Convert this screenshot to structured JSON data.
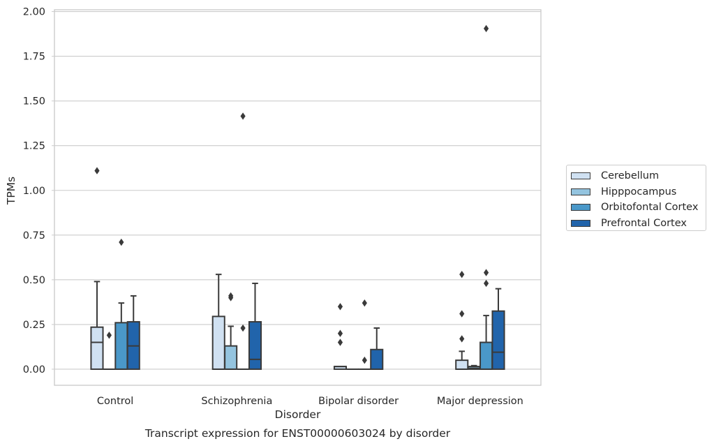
{
  "chart_data": {
    "type": "box",
    "caption": "Transcript expression for ENST00000603024 by disorder",
    "xlabel": "Disorder",
    "ylabel": "TPMs",
    "ylim": [
      -0.09,
      2.01
    ],
    "yticks": [
      0.0,
      0.25,
      0.5,
      0.75,
      1.0,
      1.25,
      1.5,
      1.75,
      2.0
    ],
    "ytick_labels": [
      "0.00",
      "0.25",
      "0.50",
      "0.75",
      "1.00",
      "1.25",
      "1.50",
      "1.75",
      "2.00"
    ],
    "grid": true,
    "legend_position": "right, outside",
    "categories": [
      "Control",
      "Schizophrenia",
      "Bipolar disorder",
      "Major depression"
    ],
    "series": [
      {
        "name": "Cerebellum",
        "color": "#d0e1f2",
        "boxes": [
          {
            "q1": 0.0,
            "median": 0.15,
            "q3": 0.235,
            "whisker_low": 0.0,
            "whisker_high": 0.49,
            "outliers": [
              1.11
            ]
          },
          {
            "q1": 0.0,
            "median": 0.0,
            "q3": 0.295,
            "whisker_low": 0.0,
            "whisker_high": 0.53,
            "outliers": []
          },
          {
            "q1": 0.0,
            "median": 0.015,
            "q3": 0.015,
            "whisker_low": 0.0,
            "whisker_high": 0.015,
            "outliers": [
              0.15,
              0.2,
              0.35
            ]
          },
          {
            "q1": 0.0,
            "median": 0.0,
            "q3": 0.05,
            "whisker_low": 0.0,
            "whisker_high": 0.1,
            "outliers": [
              0.17,
              0.31,
              0.53
            ]
          }
        ]
      },
      {
        "name": "Hipppocampus",
        "color": "#94c4df",
        "boxes": [
          {
            "q1": 0.0,
            "median": 0.0,
            "q3": 0.0,
            "whisker_low": 0.0,
            "whisker_high": 0.0,
            "outliers": [
              0.19
            ]
          },
          {
            "q1": 0.0,
            "median": 0.0,
            "q3": 0.13,
            "whisker_low": 0.0,
            "whisker_high": 0.24,
            "outliers": [
              0.4,
              0.41
            ]
          },
          {
            "q1": 0.0,
            "median": 0.0,
            "q3": 0.0,
            "whisker_low": 0.0,
            "whisker_high": 0.0,
            "outliers": []
          },
          {
            "q1": 0.0,
            "median": 0.005,
            "q3": 0.015,
            "whisker_low": 0.0,
            "whisker_high": 0.02,
            "outliers": []
          }
        ]
      },
      {
        "name": "Orbitofontal Cortex",
        "color": "#4a98c9",
        "boxes": [
          {
            "q1": 0.0,
            "median": 0.0,
            "q3": 0.26,
            "whisker_low": 0.0,
            "whisker_high": 0.37,
            "outliers": [
              0.71
            ]
          },
          {
            "q1": 0.0,
            "median": 0.0,
            "q3": 0.0,
            "whisker_low": 0.0,
            "whisker_high": 0.0,
            "outliers": [
              0.23,
              1.415
            ]
          },
          {
            "q1": 0.0,
            "median": 0.0,
            "q3": 0.0,
            "whisker_low": 0.0,
            "whisker_high": 0.0,
            "outliers": [
              0.05,
              0.37
            ]
          },
          {
            "q1": 0.0,
            "median": 0.0,
            "q3": 0.15,
            "whisker_low": 0.0,
            "whisker_high": 0.3,
            "outliers": [
              0.48,
              0.54,
              1.905
            ]
          }
        ]
      },
      {
        "name": "Prefrontal Cortex",
        "color": "#2164ab",
        "boxes": [
          {
            "q1": 0.0,
            "median": 0.13,
            "q3": 0.265,
            "whisker_low": 0.0,
            "whisker_high": 0.41,
            "outliers": []
          },
          {
            "q1": 0.0,
            "median": 0.055,
            "q3": 0.265,
            "whisker_low": 0.0,
            "whisker_high": 0.48,
            "outliers": []
          },
          {
            "q1": 0.0,
            "median": 0.0,
            "q3": 0.11,
            "whisker_low": 0.0,
            "whisker_high": 0.23,
            "outliers": []
          },
          {
            "q1": 0.0,
            "median": 0.095,
            "q3": 0.325,
            "whisker_low": 0.0,
            "whisker_high": 0.45,
            "outliers": []
          }
        ]
      }
    ]
  }
}
